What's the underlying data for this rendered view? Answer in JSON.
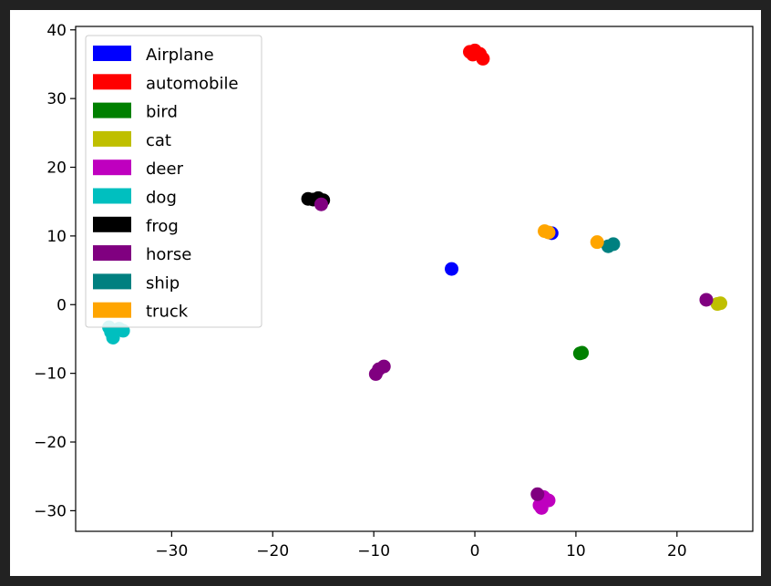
{
  "colors": {
    "background": "#ffffff",
    "frame_border": "#222222",
    "axis": "#000000",
    "legend_border": "#cccccc"
  },
  "chart_data": {
    "type": "scatter",
    "title": "",
    "xlabel": "",
    "ylabel": "",
    "xlim": [
      -39.5,
      27.5
    ],
    "ylim": [
      -33,
      40.5
    ],
    "xticks": [
      -30,
      -20,
      -10,
      0,
      10,
      20
    ],
    "yticks": [
      40,
      30,
      20,
      10,
      0,
      -10,
      -20,
      -30
    ],
    "xtick_labels": [
      "−30",
      "−20",
      "−10",
      "0",
      "10",
      "20"
    ],
    "ytick_labels": [
      "40",
      "30",
      "20",
      "10",
      "0",
      "−10",
      "−20",
      "−30"
    ],
    "grid": false,
    "legend_position": "top-left",
    "series": [
      {
        "name": "Airplane",
        "color": "#0000ff",
        "points": [
          [
            -2.3,
            5.2
          ],
          [
            7.6,
            10.4
          ]
        ]
      },
      {
        "name": "automobile",
        "color": "#ff0000",
        "points": [
          [
            -0.5,
            36.8
          ],
          [
            0.0,
            37.0
          ],
          [
            0.5,
            36.5
          ],
          [
            0.8,
            35.8
          ],
          [
            -0.2,
            36.4
          ]
        ]
      },
      {
        "name": "bird",
        "color": "#008000",
        "points": [
          [
            10.4,
            -7.1
          ],
          [
            10.6,
            -7.0
          ]
        ]
      },
      {
        "name": "cat",
        "color": "#bfbf00",
        "points": [
          [
            24.0,
            0.1
          ],
          [
            24.3,
            0.2
          ]
        ]
      },
      {
        "name": "deer",
        "color": "#bf00bf",
        "points": [
          [
            6.4,
            -29.2
          ],
          [
            6.8,
            -28.0
          ],
          [
            7.3,
            -28.5
          ],
          [
            6.6,
            -29.6
          ],
          [
            7.0,
            -28.3
          ]
        ]
      },
      {
        "name": "dog",
        "color": "#00bfbf",
        "points": [
          [
            -36.2,
            -3.3
          ],
          [
            -35.8,
            -4.8
          ],
          [
            -35.2,
            -3.5
          ],
          [
            -36.0,
            -4.0
          ],
          [
            -34.8,
            -3.8
          ]
        ]
      },
      {
        "name": "frog",
        "color": "#000000",
        "points": [
          [
            -16.5,
            15.4
          ],
          [
            -15.5,
            15.5
          ],
          [
            -15.0,
            15.2
          ],
          [
            -16.0,
            15.3
          ]
        ]
      },
      {
        "name": "horse",
        "color": "#800080",
        "points": [
          [
            -9.8,
            -10.1
          ],
          [
            -9.5,
            -9.4
          ],
          [
            -9.0,
            -9.0
          ],
          [
            6.2,
            -27.6
          ],
          [
            -15.2,
            14.6
          ],
          [
            22.9,
            0.7
          ]
        ]
      },
      {
        "name": "ship",
        "color": "#008080",
        "points": [
          [
            13.2,
            8.5
          ],
          [
            13.7,
            8.8
          ]
        ]
      },
      {
        "name": "truck",
        "color": "#ffa500",
        "points": [
          [
            6.9,
            10.7
          ],
          [
            7.3,
            10.5
          ],
          [
            12.1,
            9.1
          ]
        ]
      }
    ]
  }
}
